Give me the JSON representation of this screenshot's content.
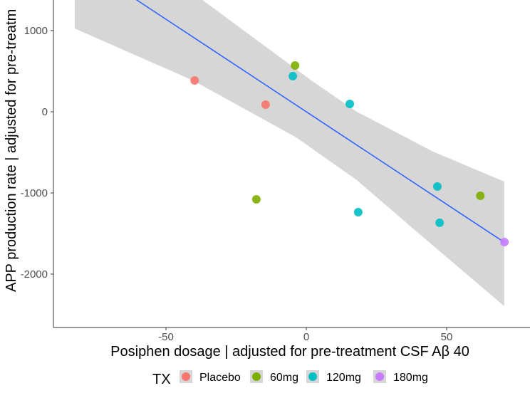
{
  "chart_data": {
    "type": "scatter",
    "xlabel": "Posiphen dosage | adjusted for pre-treatment CSF Aβ 40",
    "ylabel": "APP production rate | adjusted for pre-treatm",
    "xlim": [
      -90.1,
      79.7
    ],
    "ylim": [
      -2658,
      1377
    ],
    "x_ticks": [
      -50,
      0,
      50
    ],
    "y_ticks": [
      -2000,
      -1000,
      0,
      1000
    ],
    "grid": false,
    "legend": {
      "title": "TX",
      "position": "bottom",
      "entries": [
        {
          "label": "Placebo",
          "color": "#F8766D"
        },
        {
          "label": "60mg",
          "color": "#7CAE00"
        },
        {
          "label": "120mg",
          "color": "#00BFC4"
        },
        {
          "label": "180mg",
          "color": "#C77CFF"
        }
      ]
    },
    "series": [
      {
        "name": "Placebo",
        "color": "#F8766D",
        "points": [
          [
            -39.8,
            386
          ],
          [
            -14.5,
            88
          ]
        ]
      },
      {
        "name": "60mg",
        "color": "#7CAE00",
        "points": [
          [
            -4.0,
            570
          ],
          [
            -17.8,
            -1079
          ],
          [
            62.0,
            -1035
          ]
        ]
      },
      {
        "name": "120mg",
        "color": "#00BFC4",
        "points": [
          [
            -4.8,
            439
          ],
          [
            15.5,
            96
          ],
          [
            18.5,
            -1237
          ],
          [
            46.7,
            -921
          ],
          [
            47.5,
            -1368
          ]
        ]
      },
      {
        "name": "180mg",
        "color": "#C77CFF",
        "points": [
          [
            70.6,
            -1605
          ]
        ]
      }
    ],
    "fit": {
      "type": "linear",
      "color": "#3366FF",
      "slope": -22.8,
      "intercept": 0,
      "x_range": [
        -82.5,
        70.5
      ],
      "band_color": "#D6D6D6",
      "band_lower": [
        [
          -82.5,
          1026
        ],
        [
          -40.4,
          386
        ],
        [
          -3.6,
          -316
        ],
        [
          18,
          -842
        ],
        [
          39.8,
          -1491
        ],
        [
          70.5,
          -2395
        ]
      ],
      "band_upper": [
        [
          -82.5,
          2750
        ],
        [
          -37,
          1377
        ],
        [
          1.8,
          386
        ],
        [
          18,
          0
        ],
        [
          45.2,
          -491
        ],
        [
          70.5,
          -860
        ]
      ]
    }
  }
}
